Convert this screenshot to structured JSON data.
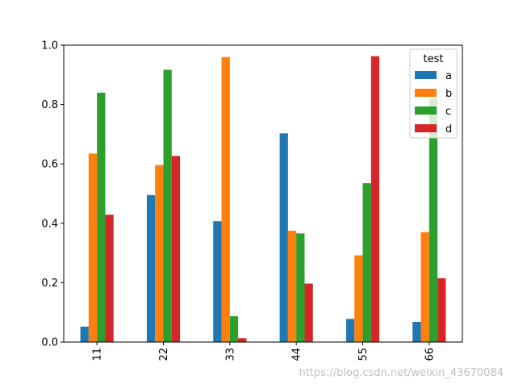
{
  "chart_data": {
    "type": "bar",
    "categories": [
      "11",
      "22",
      "33",
      "44",
      "55",
      "66"
    ],
    "series": [
      {
        "name": "a",
        "color": "#1f77b4",
        "values": [
          0.052,
          0.495,
          0.407,
          0.703,
          0.078,
          0.068
        ]
      },
      {
        "name": "b",
        "color": "#ff7f0e",
        "values": [
          0.635,
          0.596,
          0.96,
          0.375,
          0.292,
          0.37
        ]
      },
      {
        "name": "c",
        "color": "#2ca02c",
        "values": [
          0.84,
          0.917,
          0.087,
          0.366,
          0.535,
          0.82
        ]
      },
      {
        "name": "d",
        "color": "#d62728",
        "values": [
          0.429,
          0.627,
          0.013,
          0.197,
          0.963,
          0.215
        ]
      }
    ],
    "ylim": [
      0,
      1.0
    ],
    "yticks": [
      "0.0",
      "0.2",
      "0.4",
      "0.6",
      "0.8",
      "1.0"
    ],
    "legend_title": "test",
    "legend_position": "top-right",
    "xtick_rotation": "vertical",
    "grid": false
  },
  "watermark": "https://blog.csdn.net/weixin_43670084"
}
